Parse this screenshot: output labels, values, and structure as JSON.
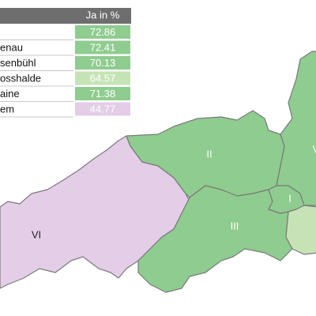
{
  "table": {
    "header": {
      "value": "Ja in %"
    },
    "rows": [
      {
        "value": 72.86
      },
      {
        "name": "enau",
        "value": 72.41
      },
      {
        "name": "senbühl",
        "value": 70.13
      },
      {
        "name": "osshalde",
        "value": 64.57
      },
      {
        "name": "aine",
        "value": 71.38
      },
      {
        "name": "em",
        "value": 44.77
      }
    ]
  },
  "map": {
    "regions": [
      {
        "label": "II"
      },
      {
        "label": "III"
      },
      {
        "label": "VI"
      },
      {
        "label": "I"
      },
      {
        "label": "V"
      }
    ]
  }
}
